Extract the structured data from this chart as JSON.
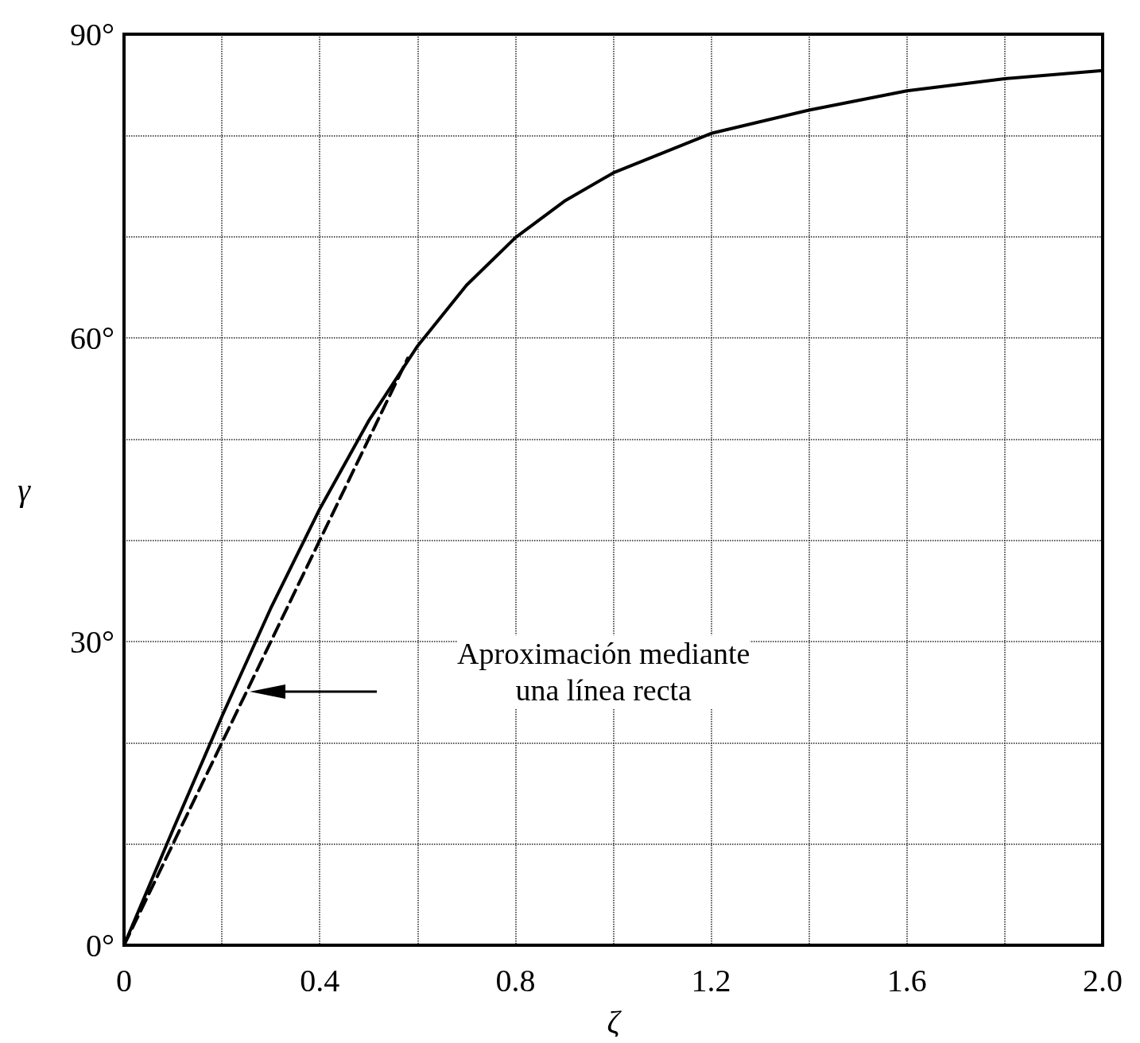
{
  "chart_data": {
    "type": "line",
    "xlabel": "ζ",
    "ylabel": "γ",
    "xlim": [
      0,
      2
    ],
    "ylim": [
      0,
      90
    ],
    "xticks": [
      0,
      {
        "value": 0.2,
        "label": null
      },
      0.4,
      {
        "value": 0.6,
        "label": null
      },
      0.8,
      {
        "value": 1.0,
        "label": null
      },
      1.2,
      {
        "value": 1.4,
        "label": null
      },
      1.6,
      {
        "value": 1.8,
        "label": null
      },
      {
        "value": 2.0,
        "label": "2.0"
      }
    ],
    "yticks": [
      {
        "value": 0,
        "label": "0°"
      },
      {
        "value": 10,
        "label": null
      },
      {
        "value": 20,
        "label": null
      },
      {
        "value": 30,
        "label": "30°"
      },
      {
        "value": 40,
        "label": null
      },
      {
        "value": 50,
        "label": null
      },
      {
        "value": 60,
        "label": "60°"
      },
      {
        "value": 70,
        "label": null
      },
      {
        "value": 80,
        "label": null
      },
      {
        "value": 90,
        "label": "90°"
      }
    ],
    "grid": true,
    "marker": "none",
    "series": [
      {
        "color": "#000000",
        "line_style": "solid",
        "x": [
          0,
          0.1,
          0.2,
          0.3,
          0.4,
          0.5,
          0.6,
          0.7,
          0.8,
          0.9,
          1.0,
          1.2,
          1.4,
          1.6,
          1.8,
          2.0
        ],
        "values": [
          0,
          11.4,
          22.6,
          33.3,
          43.1,
          51.8,
          59.2,
          65.2,
          69.9,
          73.5,
          76.3,
          80.2,
          82.5,
          84.4,
          85.6,
          86.4
        ]
      },
      {
        "color": "#000000",
        "line_style": "dashed",
        "x": [
          0,
          0.58
        ],
        "values": [
          0,
          58
        ]
      }
    ],
    "annotations": [
      "Aproximación mediante\nuna línea recta"
    ]
  }
}
